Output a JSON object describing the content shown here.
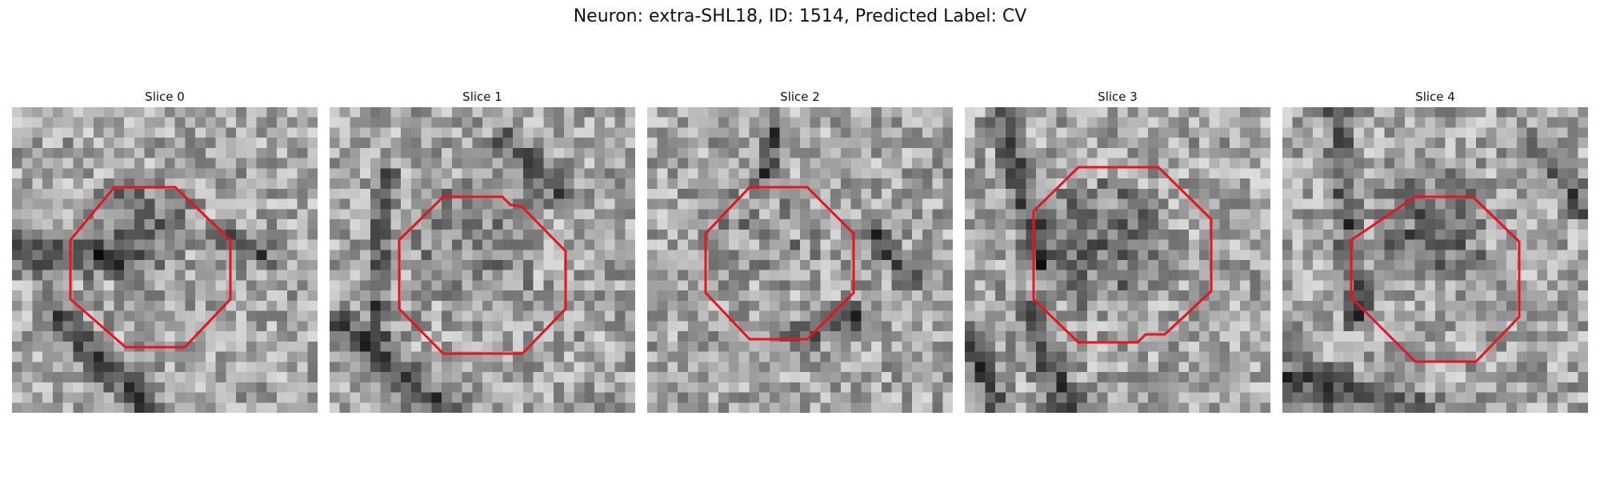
{
  "figure": {
    "title": "Neuron: extra-SHL18, ID: 1514, Predicted Label: CV"
  },
  "panels": [
    {
      "title": "Slice 0"
    },
    {
      "title": "Slice 1"
    },
    {
      "title": "Slice 2"
    },
    {
      "title": "Slice 3"
    },
    {
      "title": "Slice 4"
    }
  ],
  "colors": {
    "contour": "#e8141b",
    "background": "#ffffff"
  }
}
